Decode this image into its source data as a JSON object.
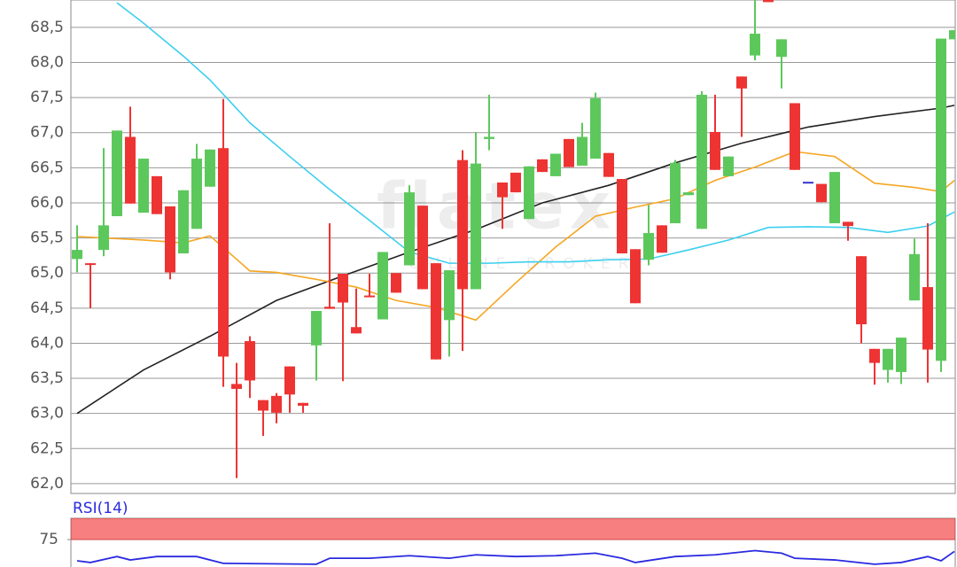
{
  "chart_data": [
    {
      "type": "candlestick",
      "watermark": "flatex",
      "watermark_sub": "ONLINE BROKER",
      "up_color": "#5cc85c",
      "down_color": "#ee3333",
      "doji_color": "#3333cc",
      "ylim": [
        61.86,
        68.89
      ],
      "yticks": [
        {
          "value": 62,
          "label": "62,0"
        },
        {
          "value": 62.5,
          "label": "62,5"
        },
        {
          "value": 63,
          "label": "63,0"
        },
        {
          "value": 63.5,
          "label": "63,5"
        },
        {
          "value": 64,
          "label": "64,0"
        },
        {
          "value": 64.5,
          "label": "64,5"
        },
        {
          "value": 65,
          "label": "65,0"
        },
        {
          "value": 65.5,
          "label": "65,5"
        },
        {
          "value": 66,
          "label": "66,0"
        },
        {
          "value": 66.5,
          "label": "66,5"
        },
        {
          "value": 67,
          "label": "67,0"
        },
        {
          "value": 67.5,
          "label": "67,5"
        },
        {
          "value": 68,
          "label": "68,0"
        },
        {
          "value": 68.5,
          "label": "68,5"
        }
      ],
      "grid": true,
      "open": [
        65.2,
        65.14,
        65.33,
        65.81,
        66.94,
        65.86,
        66.38,
        65.95,
        65.28,
        65.63,
        66.23,
        66.78,
        63.42,
        64.03,
        63.19,
        63.25,
        63.67,
        63.15,
        63.97,
        64.52,
        64.99,
        64.23,
        64.68,
        64.34,
        65.0,
        65.11,
        65.96,
        65.14,
        64.33,
        66.61,
        64.77,
        66.91,
        66.29,
        66.43,
        65.77,
        66.62,
        66.38,
        66.91,
        66.53,
        66.63,
        66.71,
        66.34,
        65.34,
        65.19,
        65.68,
        65.71,
        66.11,
        65.63,
        67.01,
        66.38,
        67.8,
        68.1,
        68.95,
        68.08,
        67.42,
        66.3,
        66.27,
        65.71,
        65.73,
        65.24,
        63.92,
        63.62,
        63.59,
        64.61,
        64.8,
        63.75,
        68.33
      ],
      "high": [
        65.68,
        65.14,
        66.78,
        67.03,
        67.37,
        66.63,
        66.38,
        65.95,
        66.18,
        66.84,
        66.76,
        67.48,
        63.72,
        64.1,
        63.19,
        63.29,
        63.67,
        63.15,
        64.46,
        65.71,
        64.99,
        64.78,
        64.99,
        65.3,
        65.0,
        66.25,
        65.96,
        65.14,
        65.04,
        66.75,
        67.01,
        67.54,
        66.29,
        66.43,
        66.52,
        66.62,
        66.7,
        66.91,
        67.14,
        67.57,
        66.71,
        66.34,
        65.34,
        65.97,
        65.68,
        66.61,
        66.15,
        67.59,
        67.54,
        66.66,
        67.8,
        68.9,
        68.95,
        68.33,
        67.42,
        66.3,
        66.27,
        66.44,
        65.73,
        65.24,
        63.92,
        63.92,
        64.08,
        65.49,
        65.71,
        68.34,
        68.46
      ],
      "low": [
        65.01,
        64.5,
        65.24,
        65.81,
        65.99,
        65.86,
        65.84,
        64.91,
        65.28,
        65.63,
        66.23,
        63.38,
        62.08,
        63.22,
        62.68,
        62.86,
        63.01,
        63.01,
        63.47,
        64.49,
        63.46,
        64.14,
        64.66,
        64.34,
        64.72,
        65.11,
        64.77,
        63.77,
        63.81,
        63.89,
        64.77,
        66.75,
        65.63,
        66.15,
        65.77,
        66.44,
        66.38,
        66.51,
        66.53,
        66.63,
        66.37,
        65.28,
        64.57,
        65.11,
        65.29,
        65.71,
        66.11,
        65.63,
        66.47,
        66.38,
        66.94,
        68.03,
        68.86,
        67.63,
        66.47,
        66.3,
        66.01,
        65.71,
        65.46,
        64.0,
        63.41,
        63.44,
        63.42,
        64.61,
        63.44,
        63.59,
        68.33
      ],
      "close": [
        65.33,
        65.12,
        65.68,
        67.03,
        65.99,
        66.63,
        65.84,
        65.01,
        66.18,
        66.63,
        66.76,
        63.81,
        63.35,
        63.47,
        63.04,
        63.01,
        63.27,
        63.11,
        64.46,
        64.49,
        64.58,
        64.14,
        64.66,
        65.3,
        64.72,
        66.15,
        64.77,
        63.77,
        65.04,
        64.77,
        66.56,
        66.94,
        66.08,
        66.15,
        66.52,
        66.44,
        66.7,
        66.51,
        66.94,
        67.49,
        66.37,
        65.28,
        64.57,
        65.57,
        65.29,
        66.57,
        66.15,
        67.54,
        66.47,
        66.66,
        67.63,
        68.41,
        68.86,
        68.33,
        66.47,
        66.3,
        66.01,
        66.44,
        65.67,
        64.27,
        63.72,
        63.92,
        64.08,
        65.27,
        63.91,
        68.34,
        68.46
      ],
      "lines": [
        {
          "color": "#222222",
          "x": [
            0,
            5,
            10,
            15,
            20,
            25,
            30,
            35,
            40,
            45,
            50,
            55,
            60,
            65,
            66
          ],
          "values": [
            63.0,
            63.62,
            64.1,
            64.61,
            64.96,
            65.3,
            65.62,
            66.0,
            66.25,
            66.57,
            66.85,
            67.08,
            67.23,
            67.35,
            67.39
          ]
        },
        {
          "color": "#f5a623",
          "x": [
            0,
            5,
            8,
            10,
            13,
            15,
            18,
            21,
            24,
            27,
            30,
            33,
            36,
            39,
            42,
            45,
            48,
            51,
            54,
            57,
            60,
            63,
            65,
            66
          ],
          "values": [
            65.52,
            65.47,
            65.43,
            65.53,
            65.03,
            65.01,
            64.91,
            64.8,
            64.61,
            64.51,
            64.33,
            64.86,
            65.37,
            65.81,
            65.94,
            66.06,
            66.32,
            66.51,
            66.73,
            66.66,
            66.28,
            66.22,
            66.16,
            66.32
          ]
        },
        {
          "color": "#3ccfef",
          "x": [
            3,
            5,
            8,
            10,
            13,
            16,
            19,
            22,
            25,
            28,
            31,
            34,
            37,
            40,
            43,
            46,
            49,
            52,
            55,
            58,
            61,
            64,
            66
          ],
          "values": [
            68.85,
            68.56,
            68.09,
            67.75,
            67.14,
            66.66,
            66.19,
            65.75,
            65.3,
            65.14,
            65.14,
            65.16,
            65.16,
            65.19,
            65.2,
            65.33,
            65.47,
            65.65,
            65.66,
            65.65,
            65.58,
            65.67,
            65.87
          ]
        }
      ]
    },
    {
      "type": "line",
      "title": "RSI(14)",
      "ylim": [
        0,
        100
      ],
      "yticks": [
        75
      ],
      "band": [
        75,
        100
      ],
      "band_color": "#f77f7f",
      "series": [
        {
          "color": "#2a2ae0",
          "x": [
            0,
            1,
            3,
            4,
            6,
            9,
            11,
            18,
            19,
            22,
            25,
            28,
            30,
            33,
            36,
            39,
            41,
            42,
            45,
            48,
            51,
            53,
            54,
            57,
            60,
            62,
            64,
            65,
            66
          ],
          "values": [
            50,
            48,
            55,
            51,
            55,
            55,
            47,
            46,
            53,
            53,
            56,
            53,
            57,
            55,
            56,
            59,
            53,
            48,
            55,
            57,
            62,
            59,
            53,
            51,
            46,
            48,
            55,
            50,
            61
          ]
        }
      ]
    }
  ]
}
